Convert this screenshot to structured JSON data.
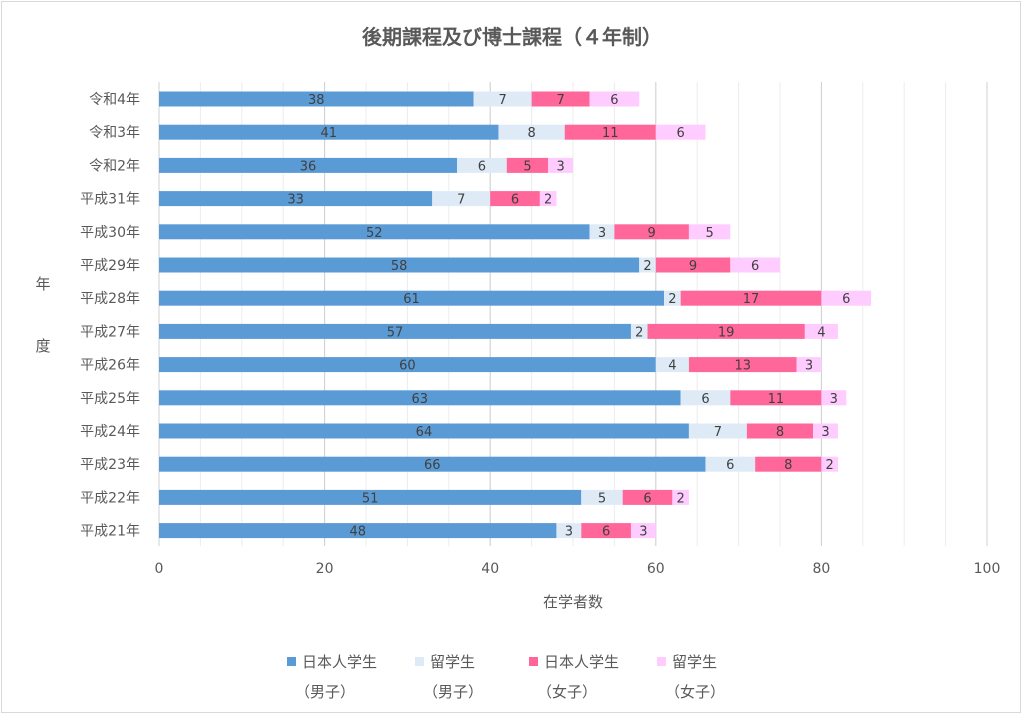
{
  "chart_data": {
    "type": "bar",
    "orientation": "horizontal",
    "stacked": true,
    "title": "後期課程及び博士課程（４年制）",
    "xlabel": "在学者数",
    "ylabel": [
      "年",
      "度"
    ],
    "xlim": [
      0,
      100
    ],
    "xticks": [
      0,
      20,
      40,
      60,
      80,
      100
    ],
    "grid": true,
    "legend_position": "bottom",
    "categories": [
      "令和4年",
      "令和3年",
      "令和2年",
      "平成31年",
      "平成30年",
      "平成29年",
      "平成28年",
      "平成27年",
      "平成26年",
      "平成25年",
      "平成24年",
      "平成23年",
      "平成22年",
      "平成21年"
    ],
    "series": [
      {
        "name": "日本人学生",
        "sub": "（男子）",
        "color": "#5b9bd5",
        "values": [
          38,
          41,
          36,
          33,
          52,
          58,
          61,
          57,
          60,
          63,
          64,
          66,
          51,
          48
        ]
      },
      {
        "name": "留学生",
        "sub": "（男子）",
        "color": "#deebf7",
        "values": [
          7,
          8,
          6,
          7,
          3,
          2,
          2,
          2,
          4,
          6,
          7,
          6,
          5,
          3
        ]
      },
      {
        "name": "日本人学生",
        "sub": "（女子）",
        "color": "#ff6699",
        "values": [
          7,
          11,
          5,
          6,
          9,
          9,
          17,
          19,
          13,
          11,
          8,
          8,
          6,
          6
        ]
      },
      {
        "name": "留学生",
        "sub": "（女子）",
        "color": "#ffccff",
        "values": [
          6,
          6,
          3,
          2,
          5,
          6,
          6,
          4,
          3,
          3,
          3,
          2,
          2,
          3
        ]
      }
    ]
  }
}
